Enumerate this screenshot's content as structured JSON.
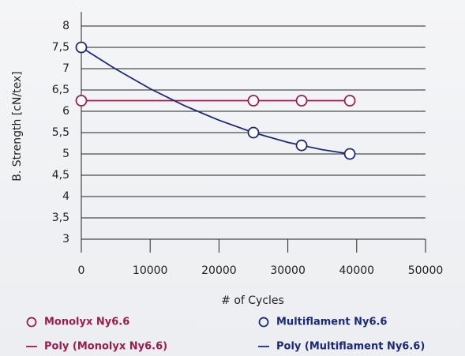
{
  "chart_data": {
    "type": "line",
    "xlabel": "# of Cycles",
    "ylabel": "B. Strength [cN/tex]",
    "xlim": [
      0,
      50000
    ],
    "xticks": [
      0,
      10000,
      20000,
      30000,
      40000,
      50000
    ],
    "ylim": [
      3,
      8
    ],
    "yticks": [
      3,
      {
        "value": 3.5,
        "label": "3,5"
      },
      4,
      {
        "value": 4.5,
        "label": "4,5"
      },
      5,
      {
        "value": 5.5,
        "label": "5,5"
      },
      6,
      {
        "value": 6.5,
        "label": "6,5"
      },
      7,
      {
        "value": 7.5,
        "label": "7,5"
      },
      8
    ],
    "grid": true,
    "series": [
      {
        "name": "Monolyx Ny6.6",
        "color": "#9c1c50",
        "style": "markers",
        "x": [
          0,
          25000,
          32000,
          39000
        ],
        "values": [
          6.25,
          6.25,
          6.25,
          6.25
        ]
      },
      {
        "name": "Multiflament Ny6.6",
        "color": "#1b2a78",
        "style": "markers",
        "x": [
          0,
          25000,
          32000,
          39000
        ],
        "values": [
          7.5,
          5.5,
          5.2,
          5.0
        ]
      },
      {
        "name": "Poly (Monolyx Ny6.6)",
        "color": "#9c1c50",
        "style": "line",
        "x": [
          0,
          39000
        ],
        "values": [
          6.25,
          6.25
        ]
      },
      {
        "name": "Poly (Multiflament Ny6.6)",
        "color": "#1b2a78",
        "style": "line",
        "x": [
          0,
          5000,
          10000,
          15000,
          20000,
          25000,
          30000,
          35000,
          39000
        ],
        "values": [
          7.5,
          6.99,
          6.53,
          6.13,
          5.79,
          5.5,
          5.27,
          5.1,
          5.0
        ]
      }
    ]
  }
}
